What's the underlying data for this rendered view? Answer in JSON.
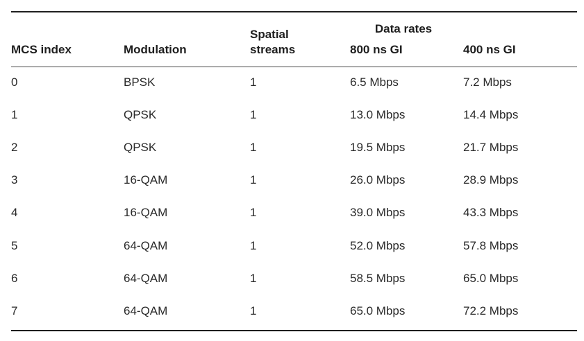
{
  "table": {
    "headers": {
      "group_data_rates": "Data rates",
      "mcs_index": "MCS index",
      "modulation": "Modulation",
      "spatial_line1": "Spatial",
      "spatial_line2": "streams",
      "gi_800": "800 ns GI",
      "gi_400": "400 ns GI"
    },
    "rows": [
      {
        "mcs": "0",
        "modulation": "BPSK",
        "streams": "1",
        "rate_800": "6.5 Mbps",
        "rate_400": "7.2 Mbps"
      },
      {
        "mcs": "1",
        "modulation": "QPSK",
        "streams": "1",
        "rate_800": "13.0 Mbps",
        "rate_400": "14.4 Mbps"
      },
      {
        "mcs": "2",
        "modulation": "QPSK",
        "streams": "1",
        "rate_800": "19.5 Mbps",
        "rate_400": "21.7 Mbps"
      },
      {
        "mcs": "3",
        "modulation": "16-QAM",
        "streams": "1",
        "rate_800": "26.0 Mbps",
        "rate_400": "28.9 Mbps"
      },
      {
        "mcs": "4",
        "modulation": "16-QAM",
        "streams": "1",
        "rate_800": "39.0 Mbps",
        "rate_400": "43.3 Mbps"
      },
      {
        "mcs": "5",
        "modulation": "64-QAM",
        "streams": "1",
        "rate_800": "52.0 Mbps",
        "rate_400": "57.8 Mbps"
      },
      {
        "mcs": "6",
        "modulation": "64-QAM",
        "streams": "1",
        "rate_800": "58.5 Mbps",
        "rate_400": "65.0 Mbps"
      },
      {
        "mcs": "7",
        "modulation": "64-QAM",
        "streams": "1",
        "rate_800": "65.0 Mbps",
        "rate_400": "72.2 Mbps"
      }
    ]
  }
}
